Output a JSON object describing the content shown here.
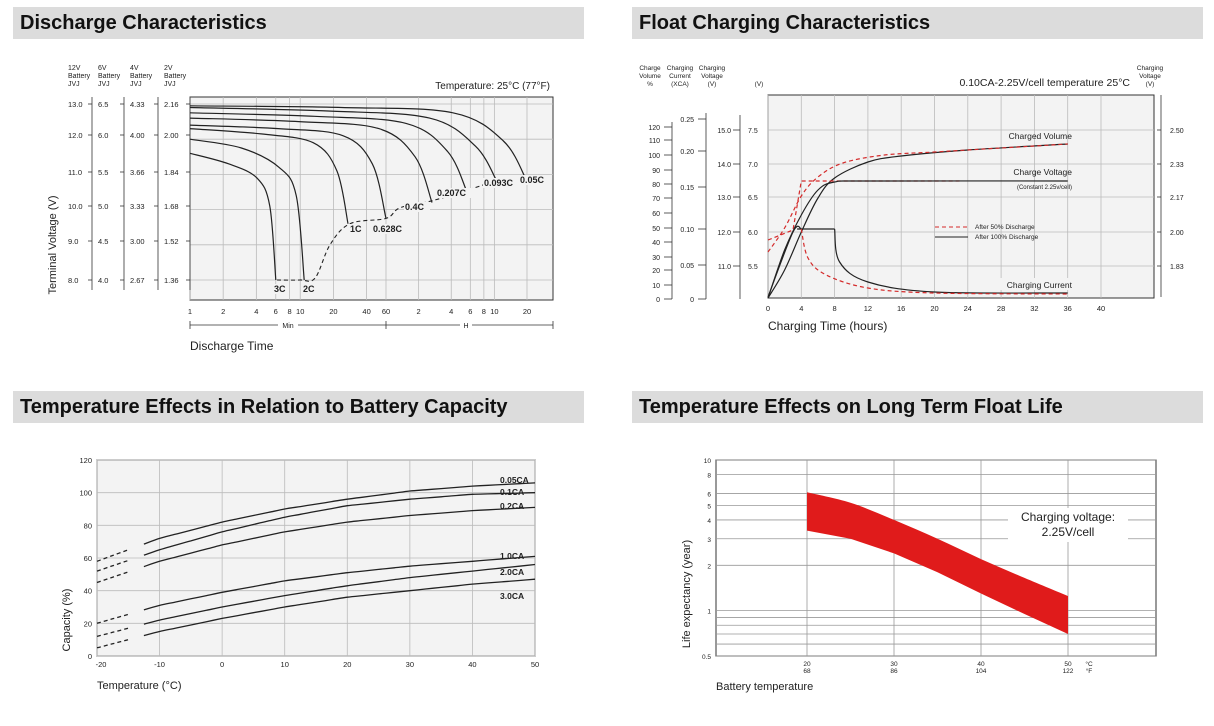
{
  "sections": {
    "discharge": "Discharge Characteristics",
    "float": "Float Charging Characteristics",
    "temp_capacity": "Temperature Effects in Relation to Battery Capacity",
    "float_life": "Temperature Effects on Long Term Float Life"
  },
  "colors": {
    "accent_red": "#d42a2a",
    "header_bg": "#dcdcdc",
    "grid": "#bbbbbb",
    "plot_bg": "#f3f3f3",
    "band": "#e01b1b"
  },
  "chart_data": [
    {
      "type": "line",
      "title": "Discharge Characteristics",
      "annotation": "Temperature: 25°C (77°F)",
      "xlabel": "Discharge Time",
      "ylabel": "Terminal Voltage (V)",
      "x_ticks": [
        "1",
        "2",
        "4",
        "6",
        "8",
        "10",
        "20",
        "40",
        "60",
        "2",
        "4",
        "6",
        "8",
        "10",
        "20"
      ],
      "x_units": [
        "Min",
        "H"
      ],
      "voltage_axes": [
        {
          "header": [
            "12V",
            "Battery",
            "JVJ"
          ],
          "ticks": [
            "13.0",
            "12.0",
            "11.0",
            "10.0",
            "9.0",
            "8.0"
          ]
        },
        {
          "header": [
            "6V",
            "Battery",
            "JVJ"
          ],
          "ticks": [
            "6.5",
            "6.0",
            "5.5",
            "5.0",
            "4.5",
            "4.0"
          ]
        },
        {
          "header": [
            "4V",
            "Battery",
            "JVJ"
          ],
          "ticks": [
            "4.33",
            "4.00",
            "3.66",
            "3.33",
            "3.00",
            "2.67"
          ]
        },
        {
          "header": [
            "2V",
            "Battery",
            "JVJ"
          ],
          "ticks": [
            "2.16",
            "2.00",
            "1.84",
            "1.68",
            "1.52",
            "1.36"
          ]
        }
      ],
      "series": [
        {
          "name": "3C",
          "end_minutes": 6,
          "end_voltage_12v": 8.0
        },
        {
          "name": "2C",
          "end_minutes": 11,
          "end_voltage_12v": 8.0
        },
        {
          "name": "1C",
          "end_minutes": 38,
          "end_voltage_12v": 9.6
        },
        {
          "name": "0.628C",
          "end_minutes": 60,
          "end_voltage_12v": 9.75
        },
        {
          "name": "0.4C",
          "end_minutes": 120,
          "end_voltage_12v": 10.2
        },
        {
          "name": "0.207C",
          "end_minutes": 240,
          "end_voltage_12v": 10.5
        },
        {
          "name": "0.093C",
          "end_minutes": 600,
          "end_voltage_12v": 10.8
        },
        {
          "name": "0.05C",
          "end_minutes": 1200,
          "end_voltage_12v": 10.8
        }
      ]
    },
    {
      "type": "line",
      "title": "Float Charging Characteristics",
      "annotation": "0.10CA-2.25V/cell  temperature 25°C",
      "xlabel": "Charging Time (hours)",
      "x": [
        0,
        4,
        8,
        12,
        16,
        20,
        24,
        28,
        32,
        36,
        40
      ],
      "left_axes": [
        {
          "header": [
            "Charge",
            "Volume",
            "%"
          ],
          "ticks": [
            "120",
            "110",
            "100",
            "90",
            "80",
            "70",
            "60",
            "50",
            "40",
            "30",
            "20",
            "10",
            "0"
          ]
        },
        {
          "header": [
            "Charging",
            "Current",
            "(XCA)"
          ],
          "ticks": [
            "0.25",
            "0.20",
            "0.15",
            "0.10",
            "0.05",
            "0"
          ]
        },
        {
          "header": [
            "Charging",
            "Voltage",
            "(V)"
          ],
          "ticks": [
            "15.0",
            "14.0",
            "13.0",
            "12.0",
            "11.0"
          ]
        },
        {
          "header": [
            "",
            "",
            "(V)"
          ],
          "ticks": [
            "7.5",
            "7.0",
            "6.5",
            "6.0",
            "5.5"
          ]
        }
      ],
      "right_axis": {
        "header": [
          "Charging",
          "Voltage",
          "(V)"
        ],
        "ticks": [
          "2.50",
          "2.33",
          "2.17",
          "2.00",
          "1.83"
        ]
      },
      "curve_labels": [
        "Charged Volume",
        "Charge Voltage",
        "(Constant 2.25v/cell)",
        "Charging Current"
      ],
      "legend": [
        "After  50% Discharge",
        "After 100% Discharge"
      ]
    },
    {
      "type": "line",
      "title": "Temperature Effects in Relation to Battery Capacity",
      "xlabel": "Temperature (°C)",
      "ylabel": "Capacity (%)",
      "x_ticks": [
        "-20",
        "-10",
        "0",
        "10",
        "20",
        "30",
        "40",
        "50"
      ],
      "y_ticks": [
        "120",
        "100",
        "80",
        "60",
        "40",
        "20",
        "0"
      ],
      "xlim": [
        -20,
        50
      ],
      "ylim": [
        0,
        120
      ],
      "series": [
        {
          "name": "0.05CA",
          "x": [
            -20,
            -10,
            0,
            10,
            20,
            30,
            40,
            50
          ],
          "values": [
            58,
            72,
            82,
            90,
            96,
            101,
            104,
            106
          ]
        },
        {
          "name": "0.1CA",
          "x": [
            -20,
            -10,
            0,
            10,
            20,
            30,
            40,
            50
          ],
          "values": [
            52,
            65,
            76,
            85,
            92,
            96,
            99,
            100
          ]
        },
        {
          "name": "0.2CA",
          "x": [
            -20,
            -10,
            0,
            10,
            20,
            30,
            40,
            50
          ],
          "values": [
            45,
            58,
            68,
            76,
            82,
            86,
            89,
            91
          ]
        },
        {
          "name": "1.0CA",
          "x": [
            -20,
            -10,
            0,
            10,
            20,
            30,
            40,
            50
          ],
          "values": [
            20,
            31,
            39,
            46,
            51,
            55,
            58,
            61
          ]
        },
        {
          "name": "2.0CA",
          "x": [
            -20,
            -10,
            0,
            10,
            20,
            30,
            40,
            50
          ],
          "values": [
            12,
            22,
            30,
            37,
            43,
            48,
            52,
            56
          ]
        },
        {
          "name": "3.0CA",
          "x": [
            -20,
            -10,
            0,
            10,
            20,
            30,
            40,
            50
          ],
          "values": [
            5,
            15,
            23,
            30,
            36,
            40,
            44,
            47
          ]
        }
      ]
    },
    {
      "type": "area",
      "title": "Temperature Effects on Long Term Float Life",
      "xlabel": "Battery temperature",
      "ylabel": "Life expectancy (year)",
      "x_ticks": [
        {
          "c": "20",
          "f": "68"
        },
        {
          "c": "30",
          "f": "86"
        },
        {
          "c": "40",
          "f": "104"
        },
        {
          "c": "50",
          "f": "122"
        }
      ],
      "x_units": {
        "c": "°C",
        "f": "°F"
      },
      "y_ticks": [
        "10",
        "8",
        "6",
        "5",
        "4",
        "3",
        "2",
        "1",
        "0.5"
      ],
      "y_scale": "log",
      "xlim": [
        20,
        50
      ],
      "ylim": [
        0.5,
        10
      ],
      "annotation": [
        "Charging voltage:",
        "2.25V/cell"
      ],
      "band": {
        "x": [
          20,
          25,
          30,
          35,
          40,
          45,
          50
        ],
        "upper": [
          6.1,
          5.2,
          4.0,
          3.0,
          2.2,
          1.65,
          1.25
        ],
        "lower": [
          3.4,
          3.0,
          2.4,
          1.8,
          1.3,
          0.95,
          0.7
        ]
      }
    }
  ]
}
